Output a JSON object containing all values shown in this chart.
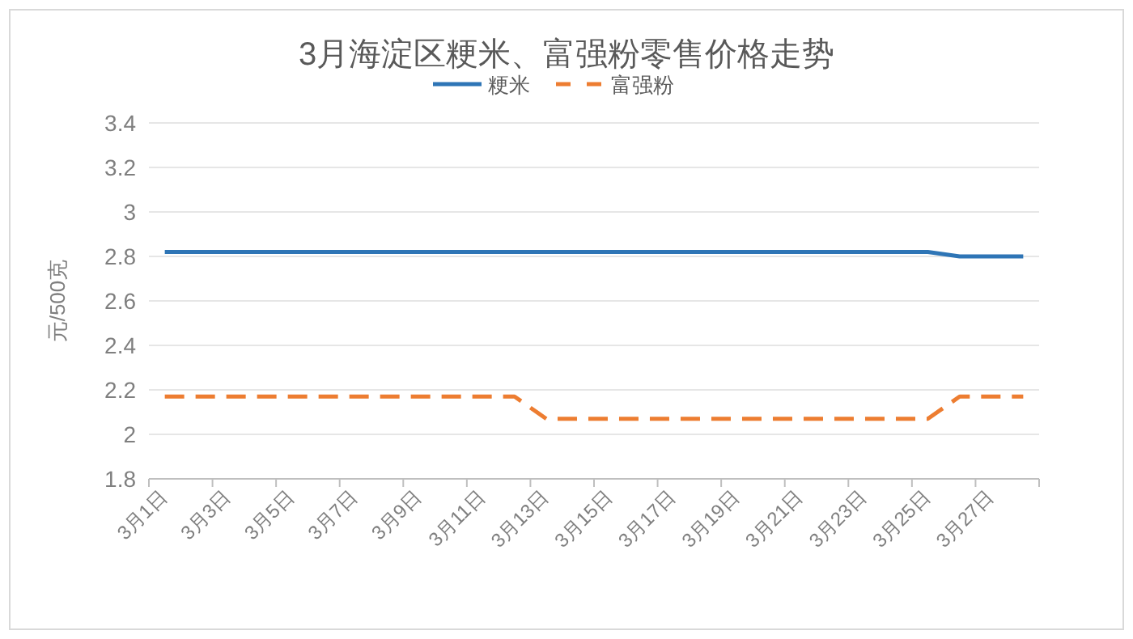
{
  "chart_data": {
    "type": "line",
    "title": "3月海淀区粳米、富强粉零售价格走势",
    "ylabel": "元/500克",
    "categories": [
      "3月1日",
      null,
      "3月3日",
      null,
      "3月5日",
      null,
      "3月7日",
      null,
      "3月9日",
      null,
      "3月11日",
      null,
      "3月13日",
      null,
      "3月15日",
      null,
      "3月17日",
      null,
      "3月19日",
      null,
      "3月21日",
      null,
      "3月23日",
      null,
      "3月25日",
      null,
      "3月27日",
      null
    ],
    "series": [
      {
        "name": "粳米",
        "color": "#2e75b6",
        "line_style": "solid",
        "values": [
          2.82,
          2.82,
          2.82,
          2.82,
          2.82,
          2.82,
          2.82,
          2.82,
          2.82,
          2.82,
          2.82,
          2.82,
          2.82,
          2.82,
          2.82,
          2.82,
          2.82,
          2.82,
          2.82,
          2.82,
          2.82,
          2.82,
          2.82,
          2.82,
          2.82,
          2.8,
          2.8,
          2.8
        ]
      },
      {
        "name": "富强粉",
        "color": "#ed7d31",
        "line_style": "dashed",
        "values": [
          2.17,
          2.17,
          2.17,
          2.17,
          2.17,
          2.17,
          2.17,
          2.17,
          2.17,
          2.17,
          2.17,
          2.17,
          2.07,
          2.07,
          2.07,
          2.07,
          2.07,
          2.07,
          2.07,
          2.07,
          2.07,
          2.07,
          2.07,
          2.07,
          2.07,
          2.17,
          2.17,
          2.17
        ]
      }
    ],
    "ylim": [
      1.8,
      3.4
    ],
    "yticks": [
      1.8,
      2,
      2.2,
      2.4,
      2.6,
      2.8,
      3,
      3.2,
      3.4
    ],
    "grid": "y",
    "legend": "top",
    "marker": "none"
  }
}
